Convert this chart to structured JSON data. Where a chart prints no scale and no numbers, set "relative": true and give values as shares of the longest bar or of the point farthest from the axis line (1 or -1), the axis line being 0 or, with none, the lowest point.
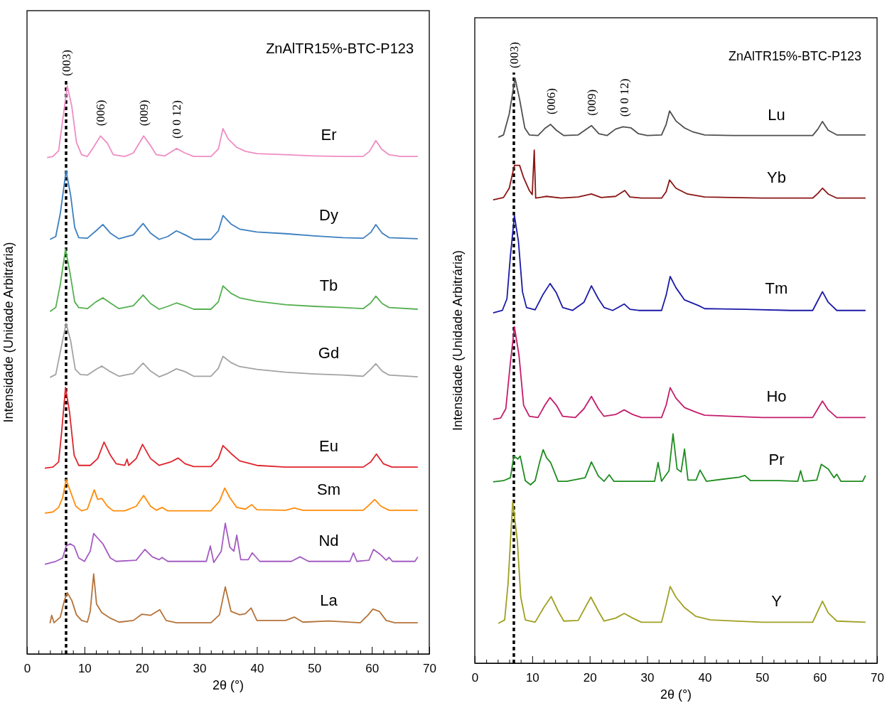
{
  "chart_data": [
    {
      "type": "line",
      "title": "ZnAlTR15%-BTC-P123",
      "xlabel": "2θ (°)",
      "ylabel": "Intensidade (Unidade Arbitrária)",
      "relative": true,
      "xlim": [
        0,
        70
      ],
      "xticks": [
        0,
        {
          "value": 2,
          "label": null
        },
        {
          "value": 4,
          "label": null
        },
        {
          "value": 6,
          "label": null
        },
        {
          "value": 8,
          "label": null
        },
        10,
        {
          "value": 12,
          "label": null
        },
        {
          "value": 14,
          "label": null
        },
        {
          "value": 16,
          "label": null
        },
        {
          "value": 18,
          "label": null
        },
        20,
        {
          "value": 22,
          "label": null
        },
        {
          "value": 24,
          "label": null
        },
        {
          "value": 26,
          "label": null
        },
        {
          "value": 28,
          "label": null
        },
        30,
        {
          "value": 32,
          "label": null
        },
        {
          "value": 34,
          "label": null
        },
        {
          "value": 36,
          "label": null
        },
        {
          "value": 38,
          "label": null
        },
        40,
        {
          "value": 42,
          "label": null
        },
        {
          "value": 44,
          "label": null
        },
        {
          "value": 46,
          "label": null
        },
        {
          "value": 48,
          "label": null
        },
        50,
        {
          "value": 52,
          "label": null
        },
        {
          "value": 54,
          "label": null
        },
        {
          "value": 56,
          "label": null
        },
        {
          "value": 58,
          "label": null
        },
        60,
        {
          "value": 62,
          "label": null
        },
        {
          "value": 64,
          "label": null
        },
        {
          "value": 66,
          "label": null
        },
        {
          "value": 68,
          "label": null
        },
        70
      ],
      "ref_lines": [
        {
          "axis": "x",
          "value": 6.8,
          "color": "#000000",
          "line_style": "dashed"
        }
      ],
      "annotations": [
        {
          "text": "(003)",
          "x": 6.8,
          "y": 1
        },
        {
          "text": "(006)",
          "x": 12.8,
          "y": 0.912
        },
        {
          "text": "(009)",
          "x": 20.3,
          "y": 0.912
        },
        {
          "text": "(0 0 12)",
          "x": 26,
          "y": 0.89
        }
      ],
      "series": [
        {
          "name": "Er",
          "color": "#f08cc4",
          "x": [
            3.5,
            4.5,
            5.5,
            6.2,
            7.0,
            7.8,
            8.6,
            9.5,
            10.5,
            11.5,
            12.8,
            14,
            15,
            17,
            18.5,
            20.3,
            21.5,
            22.5,
            24,
            26,
            27.5,
            29,
            32,
            33.3,
            34.1,
            35,
            36.5,
            38,
            40,
            45,
            50,
            55,
            58.5,
            59.6,
            60.7,
            61.7,
            63,
            65,
            68
          ],
          "values": [
            0.874,
            0.876,
            0.886,
            0.939,
            1,
            0.964,
            0.901,
            0.879,
            0.876,
            0.891,
            0.912,
            0.899,
            0.879,
            0.876,
            0.882,
            0.912,
            0.895,
            0.879,
            0.877,
            0.89,
            0.882,
            0.876,
            0.876,
            0.889,
            0.925,
            0.907,
            0.892,
            0.885,
            0.881,
            0.879,
            0.877,
            0.876,
            0.876,
            0.885,
            0.904,
            0.889,
            0.879,
            0.876,
            0.876
          ]
        },
        {
          "name": "Dy",
          "color": "#3d7fbf",
          "x": [
            4.0,
            5.0,
            5.8,
            6.8,
            7.6,
            8.3,
            9,
            10.5,
            12,
            13.2,
            14.5,
            16,
            18.5,
            20.2,
            21.5,
            23,
            24.5,
            26,
            27.5,
            29,
            32,
            33.3,
            34.1,
            35.5,
            37,
            40,
            45,
            50,
            55,
            58.5,
            59.8,
            60.7,
            61.8,
            63,
            68
          ],
          "values": [
            0.73,
            0.735,
            0.776,
            0.851,
            0.807,
            0.751,
            0.733,
            0.732,
            0.745,
            0.756,
            0.741,
            0.731,
            0.738,
            0.758,
            0.741,
            0.73,
            0.735,
            0.745,
            0.738,
            0.73,
            0.73,
            0.745,
            0.772,
            0.757,
            0.748,
            0.743,
            0.74,
            0.736,
            0.733,
            0.732,
            0.742,
            0.756,
            0.741,
            0.733,
            0.731
          ]
        },
        {
          "name": "Tb",
          "color": "#55b050",
          "x": [
            4.0,
            5.0,
            5.8,
            6.7,
            7.5,
            8.3,
            9,
            10.5,
            12,
            13.2,
            14.5,
            16,
            18.5,
            20.2,
            21.5,
            23,
            24.5,
            26,
            27.5,
            29,
            32,
            33.3,
            34.1,
            35.5,
            37,
            40,
            45,
            50,
            55,
            58.5,
            59.8,
            60.7,
            61.8,
            63,
            68
          ],
          "values": [
            0.603,
            0.61,
            0.651,
            0.713,
            0.67,
            0.62,
            0.61,
            0.608,
            0.62,
            0.627,
            0.618,
            0.608,
            0.613,
            0.632,
            0.617,
            0.607,
            0.612,
            0.618,
            0.613,
            0.607,
            0.607,
            0.62,
            0.648,
            0.635,
            0.627,
            0.621,
            0.615,
            0.612,
            0.61,
            0.608,
            0.618,
            0.63,
            0.617,
            0.61,
            0.607
          ]
        },
        {
          "name": "Gd",
          "color": "#a3a3a3",
          "x": [
            4.0,
            5.0,
            5.8,
            6.8,
            7.6,
            8.4,
            9.3,
            10.5,
            12,
            13,
            14.5,
            16,
            18.5,
            20.2,
            21.5,
            23,
            24.5,
            26,
            27.5,
            29,
            32,
            33.3,
            34.1,
            35.5,
            37,
            40,
            45,
            50,
            55,
            58.5,
            59.8,
            60.7,
            61.8,
            63,
            68
          ],
          "values": [
            0.487,
            0.492,
            0.532,
            0.582,
            0.551,
            0.501,
            0.492,
            0.491,
            0.501,
            0.507,
            0.497,
            0.489,
            0.494,
            0.512,
            0.498,
            0.488,
            0.494,
            0.502,
            0.497,
            0.489,
            0.489,
            0.503,
            0.524,
            0.513,
            0.506,
            0.501,
            0.496,
            0.493,
            0.491,
            0.489,
            0.501,
            0.511,
            0.498,
            0.491,
            0.488
          ]
        },
        {
          "name": "Eu",
          "color": "#e0242c",
          "x": [
            3.1,
            4.5,
            5.5,
            6.0,
            6.7,
            7.4,
            8.2,
            9,
            11,
            12.3,
            13.4,
            14.5,
            15.5,
            17,
            17.4,
            17.7,
            19,
            20.1,
            21.5,
            23,
            25,
            26.3,
            27.5,
            29,
            32,
            33.3,
            34.1,
            35.5,
            37,
            40,
            45,
            50,
            55,
            58.5,
            59.8,
            60.8,
            62,
            63.5,
            68
          ],
          "values": [
            0.327,
            0.329,
            0.338,
            0.388,
            0.469,
            0.426,
            0.35,
            0.332,
            0.332,
            0.344,
            0.373,
            0.35,
            0.335,
            0.332,
            0.343,
            0.332,
            0.344,
            0.369,
            0.344,
            0.332,
            0.338,
            0.345,
            0.335,
            0.33,
            0.33,
            0.344,
            0.367,
            0.353,
            0.34,
            0.332,
            0.329,
            0.329,
            0.329,
            0.329,
            0.338,
            0.352,
            0.335,
            0.329,
            0.329
          ]
        },
        {
          "name": "Sm",
          "color": "#ff8c0a",
          "x": [
            3.1,
            4.5,
            5.5,
            6.2,
            6.8,
            7.6,
            8.5,
            9.5,
            10.5,
            11.7,
            12.3,
            13.0,
            14,
            15,
            17,
            19,
            20.3,
            21.5,
            22.5,
            23.5,
            24.5,
            28,
            32,
            33.5,
            34.4,
            35.3,
            36.5,
            38,
            39.1,
            40,
            45,
            46.5,
            48,
            55,
            58.5,
            59.6,
            60.5,
            61.6,
            63,
            68
          ],
          "values": [
            0.248,
            0.25,
            0.258,
            0.275,
            0.307,
            0.285,
            0.26,
            0.252,
            0.255,
            0.289,
            0.272,
            0.274,
            0.26,
            0.252,
            0.252,
            0.26,
            0.279,
            0.26,
            0.253,
            0.258,
            0.252,
            0.252,
            0.252,
            0.269,
            0.292,
            0.275,
            0.258,
            0.255,
            0.263,
            0.254,
            0.253,
            0.257,
            0.253,
            0.253,
            0.253,
            0.263,
            0.272,
            0.26,
            0.253,
            0.253
          ]
        },
        {
          "name": "Nd",
          "color": "#a35cc2",
          "x": [
            3.1,
            5,
            6.2,
            6.8,
            7.5,
            8.2,
            9,
            10,
            11,
            11.6,
            12.3,
            13.2,
            14.5,
            15.5,
            19,
            20.5,
            21.8,
            23,
            23.5,
            24.5,
            31.2,
            31.9,
            32.5,
            33.8,
            34.5,
            35.3,
            36,
            36.5,
            37.2,
            38.5,
            39.2,
            40.5,
            46,
            47.5,
            49,
            56.2,
            56.8,
            57.4,
            59.5,
            60.3,
            61.5,
            62.5,
            63,
            63.6,
            67.5,
            68
          ],
          "values": [
            0.158,
            0.163,
            0.169,
            0.19,
            0.194,
            0.19,
            0.169,
            0.163,
            0.181,
            0.212,
            0.204,
            0.194,
            0.169,
            0.163,
            0.165,
            0.184,
            0.171,
            0.166,
            0.17,
            0.163,
            0.163,
            0.19,
            0.161,
            0.181,
            0.23,
            0.188,
            0.181,
            0.209,
            0.166,
            0.166,
            0.178,
            0.163,
            0.163,
            0.171,
            0.163,
            0.163,
            0.178,
            0.163,
            0.165,
            0.184,
            0.175,
            0.165,
            0.17,
            0.163,
            0.163,
            0.171
          ]
        },
        {
          "name": "La",
          "color": "#b5733a",
          "x": [
            4.0,
            4.3,
            4.7,
            5.8,
            6.5,
            7.0,
            7.8,
            8.6,
            9.5,
            10.5,
            11.0,
            11.6,
            12.1,
            13,
            14.5,
            16,
            18.5,
            20,
            21.5,
            23.1,
            24.2,
            26,
            32,
            33.5,
            34.5,
            35.5,
            37,
            38,
            39,
            40,
            45,
            46.5,
            48,
            52.5,
            58,
            59.3,
            60.2,
            61.3,
            62.5,
            64,
            68
          ],
          "values": [
            0.054,
            0.068,
            0.055,
            0.065,
            0.094,
            0.108,
            0.094,
            0.069,
            0.059,
            0.056,
            0.075,
            0.141,
            0.088,
            0.073,
            0.063,
            0.056,
            0.059,
            0.07,
            0.068,
            0.078,
            0.059,
            0.055,
            0.055,
            0.069,
            0.118,
            0.075,
            0.069,
            0.071,
            0.081,
            0.059,
            0.059,
            0.065,
            0.056,
            0.058,
            0.055,
            0.068,
            0.079,
            0.075,
            0.059,
            0.055,
            0.055
          ]
        }
      ]
    },
    {
      "type": "line",
      "title": "ZnAlTR15%-BTC-P123",
      "xlabel": "2θ (°)",
      "ylabel": "Intensidade (Unidade Arbitrária)",
      "relative": true,
      "xlim": [
        0,
        70
      ],
      "xticks": [
        0,
        {
          "value": 2,
          "label": null
        },
        {
          "value": 4,
          "label": null
        },
        {
          "value": 6,
          "label": null
        },
        {
          "value": 8,
          "label": null
        },
        10,
        {
          "value": 12,
          "label": null
        },
        {
          "value": 14,
          "label": null
        },
        {
          "value": 16,
          "label": null
        },
        {
          "value": 18,
          "label": null
        },
        20,
        {
          "value": 22,
          "label": null
        },
        {
          "value": 24,
          "label": null
        },
        {
          "value": 26,
          "label": null
        },
        {
          "value": 28,
          "label": null
        },
        30,
        {
          "value": 32,
          "label": null
        },
        {
          "value": 34,
          "label": null
        },
        {
          "value": 36,
          "label": null
        },
        {
          "value": 38,
          "label": null
        },
        40,
        {
          "value": 42,
          "label": null
        },
        {
          "value": 44,
          "label": null
        },
        {
          "value": 46,
          "label": null
        },
        {
          "value": 48,
          "label": null
        },
        50,
        {
          "value": 52,
          "label": null
        },
        {
          "value": 54,
          "label": null
        },
        {
          "value": 56,
          "label": null
        },
        {
          "value": 58,
          "label": null
        },
        60,
        {
          "value": 62,
          "label": null
        },
        {
          "value": 64,
          "label": null
        },
        {
          "value": 66,
          "label": null
        },
        {
          "value": 68,
          "label": null
        },
        70
      ],
      "ref_lines": [
        {
          "axis": "x",
          "value": 6.8,
          "color": "#000000",
          "line_style": "dashed"
        }
      ],
      "annotations": [
        {
          "text": "(003)",
          "x": 6.8,
          "y": 1
        },
        {
          "text": "(006)",
          "x": 13.2,
          "y": 0.921
        },
        {
          "text": "(009)",
          "x": 20.3,
          "y": 0.919
        },
        {
          "text": "(0 0 12)",
          "x": 26,
          "y": 0.917
        }
      ],
      "series": [
        {
          "name": "Lu",
          "color": "#4f4f4f",
          "x": [
            4.1,
            5,
            6,
            7.0,
            7.8,
            8.7,
            9.5,
            11,
            12.3,
            13.2,
            14.2,
            15.5,
            18,
            20.3,
            21.6,
            23,
            24.5,
            25.8,
            27.2,
            28.5,
            30,
            32.5,
            33.3,
            33.9,
            35,
            36.5,
            38,
            40,
            45,
            55,
            58.8,
            59.7,
            60.5,
            61.5,
            63,
            68
          ],
          "values": [
            0.899,
            0.903,
            0.939,
            1,
            0.964,
            0.915,
            0.903,
            0.902,
            0.915,
            0.921,
            0.911,
            0.902,
            0.903,
            0.919,
            0.905,
            0.902,
            0.913,
            0.917,
            0.915,
            0.905,
            0.902,
            0.903,
            0.921,
            0.944,
            0.927,
            0.915,
            0.908,
            0.903,
            0.902,
            0.902,
            0.902,
            0.913,
            0.926,
            0.911,
            0.903,
            0.903
          ]
        },
        {
          "name": "Yb",
          "color": "#8b1414",
          "x": [
            3.2,
            5,
            6,
            6.9,
            7.8,
            8.5,
            9.5,
            10.0,
            10.35,
            10.6,
            12.5,
            15,
            18,
            20.3,
            22,
            24.5,
            26.1,
            27,
            29,
            32.5,
            33.3,
            33.9,
            35,
            37,
            40,
            50,
            58.8,
            59.7,
            60.5,
            61.5,
            63,
            68
          ],
          "values": [
            0.792,
            0.796,
            0.812,
            0.851,
            0.851,
            0.83,
            0.808,
            0.801,
            0.877,
            0.795,
            0.798,
            0.795,
            0.797,
            0.802,
            0.796,
            0.798,
            0.808,
            0.797,
            0.795,
            0.795,
            0.806,
            0.826,
            0.812,
            0.802,
            0.797,
            0.795,
            0.795,
            0.803,
            0.812,
            0.802,
            0.795,
            0.795
          ]
        },
        {
          "name": "Tm",
          "color": "#1a1aa8",
          "x": [
            3.2,
            4.8,
            5.6,
            6.2,
            6.9,
            7.6,
            8.3,
            9,
            10.5,
            11.8,
            13.1,
            14.2,
            15.3,
            17,
            19,
            20.3,
            21.5,
            22.5,
            24,
            26,
            27,
            28.5,
            32.5,
            33.3,
            34.0,
            35,
            36.5,
            39,
            40,
            47,
            55,
            58.8,
            59.7,
            60.5,
            61.5,
            63,
            68
          ],
          "values": [
            0.599,
            0.603,
            0.623,
            0.696,
            0.765,
            0.721,
            0.635,
            0.608,
            0.604,
            0.629,
            0.649,
            0.633,
            0.608,
            0.603,
            0.617,
            0.645,
            0.623,
            0.608,
            0.603,
            0.614,
            0.605,
            0.603,
            0.603,
            0.629,
            0.661,
            0.642,
            0.621,
            0.611,
            0.606,
            0.605,
            0.603,
            0.603,
            0.62,
            0.635,
            0.617,
            0.603,
            0.603
          ]
        },
        {
          "name": "Ho",
          "color": "#c41c6c",
          "x": [
            3.2,
            4.5,
            5.4,
            6.2,
            6.9,
            7.7,
            8.5,
            9.5,
            11,
            12.2,
            13.1,
            14.2,
            15.3,
            17.5,
            19,
            20.3,
            21.5,
            22.5,
            24.5,
            26,
            27.5,
            29,
            32.5,
            33.3,
            34.0,
            35,
            36.5,
            38.5,
            40,
            50,
            58.8,
            59.7,
            60.5,
            61.5,
            63,
            68
          ],
          "values": [
            0.417,
            0.419,
            0.435,
            0.514,
            0.575,
            0.526,
            0.441,
            0.422,
            0.42,
            0.441,
            0.454,
            0.441,
            0.422,
            0.42,
            0.435,
            0.456,
            0.435,
            0.422,
            0.425,
            0.433,
            0.425,
            0.42,
            0.42,
            0.441,
            0.471,
            0.453,
            0.437,
            0.429,
            0.424,
            0.42,
            0.42,
            0.435,
            0.448,
            0.433,
            0.42,
            0.42
          ]
        },
        {
          "name": "Pr",
          "color": "#1e8c1e",
          "x": [
            3.2,
            5,
            6.2,
            6.8,
            7.5,
            7.9,
            8.8,
            9.7,
            10.5,
            11.3,
            11.9,
            12.5,
            13.2,
            14.5,
            16,
            19.2,
            20.3,
            21.5,
            22.5,
            23.4,
            24.2,
            28,
            31.3,
            31.9,
            32.5,
            33.8,
            34.5,
            35.2,
            35.9,
            36.5,
            37.1,
            38.5,
            39.2,
            40.3,
            46,
            47,
            48,
            53,
            56.2,
            56.7,
            57.2,
            59.5,
            60.3,
            61.5,
            62.5,
            63,
            63.7,
            67.5,
            68
          ],
          "values": [
            0.31,
            0.312,
            0.317,
            0.354,
            0.349,
            0.354,
            0.312,
            0.305,
            0.312,
            0.344,
            0.365,
            0.351,
            0.343,
            0.311,
            0.311,
            0.317,
            0.344,
            0.32,
            0.311,
            0.322,
            0.311,
            0.311,
            0.311,
            0.343,
            0.311,
            0.329,
            0.392,
            0.332,
            0.327,
            0.366,
            0.313,
            0.313,
            0.33,
            0.311,
            0.318,
            0.321,
            0.312,
            0.312,
            0.311,
            0.329,
            0.311,
            0.313,
            0.34,
            0.332,
            0.317,
            0.323,
            0.311,
            0.311,
            0.321
          ]
        },
        {
          "name": "Y",
          "color": "#a0a022",
          "x": [
            4.1,
            5.2,
            5.8,
            6.6,
            7.4,
            8.0,
            8.8,
            10.5,
            12,
            13.3,
            14.5,
            15.5,
            18,
            20.2,
            21.5,
            22.5,
            24.5,
            26,
            27.5,
            29,
            32.5,
            33.3,
            34.0,
            35,
            36.5,
            38.5,
            41,
            50,
            58.8,
            59.7,
            60.5,
            61.5,
            63,
            68
          ],
          "values": [
            0.068,
            0.074,
            0.137,
            0.276,
            0.21,
            0.113,
            0.074,
            0.07,
            0.095,
            0.114,
            0.089,
            0.072,
            0.073,
            0.113,
            0.089,
            0.072,
            0.077,
            0.085,
            0.077,
            0.07,
            0.07,
            0.101,
            0.131,
            0.113,
            0.095,
            0.08,
            0.074,
            0.07,
            0.07,
            0.089,
            0.106,
            0.086,
            0.072,
            0.07
          ]
        }
      ]
    }
  ]
}
